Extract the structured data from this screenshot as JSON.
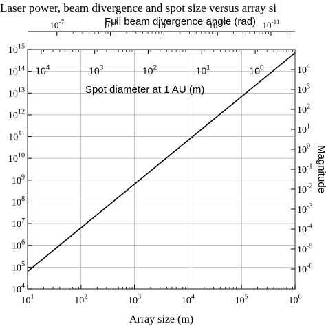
{
  "chart_data": {
    "type": "line",
    "title": "Laser power, beam divergence and spot size versus array si",
    "top_axis_label": "Full beam divergence angle (rad)",
    "inner_axis_label": "Spot diameter at 1 AU (m)",
    "xlabel": "Array size (m)",
    "right_axis_label": "Magnitude",
    "x_scale": "log",
    "xlim": [
      10,
      1000000
    ],
    "y_scale": "log",
    "ylim": [
      10000,
      1000000000000000
    ],
    "y2_scale": "log",
    "y2lim": [
      1e-07,
      100000
    ],
    "grid": true,
    "x_ticks": [
      {
        "label": "10",
        "exp": "1"
      },
      {
        "label": "10",
        "exp": "2"
      },
      {
        "label": "10",
        "exp": "3"
      },
      {
        "label": "10",
        "exp": "4"
      },
      {
        "label": "10",
        "exp": "5"
      },
      {
        "label": "10",
        "exp": "6"
      }
    ],
    "y_ticks": [
      {
        "label": "10",
        "exp": "4"
      },
      {
        "label": "10",
        "exp": "5"
      },
      {
        "label": "10",
        "exp": "6"
      },
      {
        "label": "10",
        "exp": "7"
      },
      {
        "label": "10",
        "exp": "8"
      },
      {
        "label": "10",
        "exp": "9"
      },
      {
        "label": "10",
        "exp": "10"
      },
      {
        "label": "10",
        "exp": "11"
      },
      {
        "label": "10",
        "exp": "12"
      },
      {
        "label": "10",
        "exp": "13"
      },
      {
        "label": "10",
        "exp": "14"
      },
      {
        "label": "10",
        "exp": "15"
      }
    ],
    "y2_ticks": [
      {
        "label": "10",
        "exp": "-6"
      },
      {
        "label": "10",
        "exp": "-5"
      },
      {
        "label": "10",
        "exp": "-4"
      },
      {
        "label": "10",
        "exp": "-3"
      },
      {
        "label": "10",
        "exp": "-2"
      },
      {
        "label": "10",
        "exp": "-1"
      },
      {
        "label": "10",
        "exp": "0"
      },
      {
        "label": "10",
        "exp": "1"
      },
      {
        "label": "10",
        "exp": "2"
      },
      {
        "label": "10",
        "exp": "3"
      },
      {
        "label": "10",
        "exp": "4"
      }
    ],
    "top_ticks": [
      {
        "label": "10",
        "exp": "-7",
        "x": 35.5
      },
      {
        "label": "10",
        "exp": "-8",
        "x": 355
      },
      {
        "label": "10",
        "exp": "-9",
        "x": 3550
      },
      {
        "label": "10",
        "exp": "-10",
        "x": 35500
      },
      {
        "label": "10",
        "exp": "-11",
        "x": 355000
      }
    ],
    "spot_ticks": [
      {
        "label": "10",
        "exp": "4",
        "x": 18
      },
      {
        "label": "10",
        "exp": "3",
        "x": 180
      },
      {
        "label": "10",
        "exp": "2",
        "x": 1800
      },
      {
        "label": "10",
        "exp": "1",
        "x": 18000
      },
      {
        "label": "10",
        "exp": "0",
        "x": 180000
      }
    ],
    "series": [
      {
        "x": [
          10,
          1000000
        ],
        "y": [
          63000,
          700000000000000
        ]
      }
    ]
  }
}
